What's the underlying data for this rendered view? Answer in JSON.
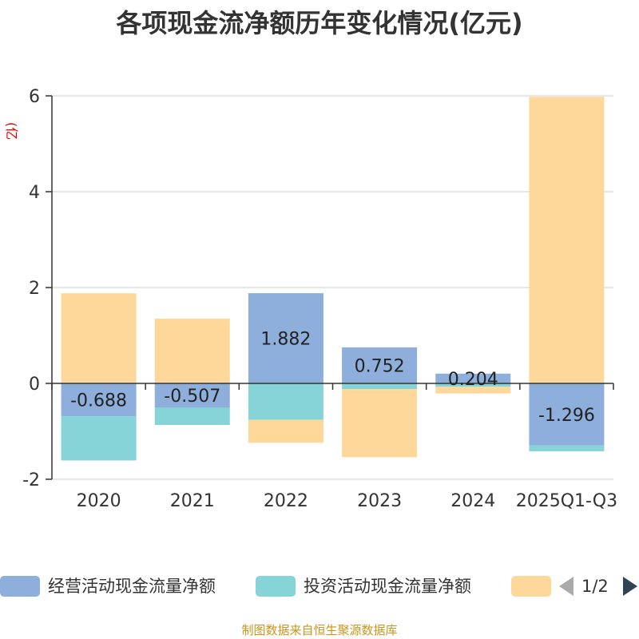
{
  "chart_data": {
    "type": "bar",
    "stacked": true,
    "title": "各项现金流净额历年变化情况(亿元)",
    "y_unit": "(亿元)",
    "categories": [
      "2020",
      "2021",
      "2022",
      "2023",
      "2024",
      "2025Q1-Q3"
    ],
    "ylim": [
      -2,
      6
    ],
    "yticks": [
      -2,
      0,
      2,
      4,
      6
    ],
    "grid": true,
    "legend_position": "bottom",
    "series": [
      {
        "name": "经营活动现金流量净额",
        "color": "#8eaedb",
        "values": [
          -0.688,
          -0.507,
          1.882,
          0.752,
          0.204,
          -1.296
        ],
        "labels": [
          "-0.688",
          "-0.507",
          "1.882",
          "0.752",
          "0.204",
          "-1.296"
        ]
      },
      {
        "name": "投资活动现金流量净额",
        "color": "#86d4d8",
        "values": [
          -0.92,
          -0.36,
          -0.76,
          -0.12,
          -0.07,
          -0.12
        ]
      },
      {
        "color": "#fdd89a",
        "values": [
          1.88,
          1.35,
          -0.48,
          -1.42,
          -0.14,
          5.98
        ]
      }
    ]
  },
  "legend": {
    "items": [
      {
        "label": "经营活动现金流量净额",
        "color": "#8eaedb"
      },
      {
        "label": "投资活动现金流量净额",
        "color": "#86d4d8"
      },
      {
        "label": "",
        "color": "#fdd89a"
      }
    ],
    "page_indicator": "1/2"
  },
  "source": "制图数据来自恒生聚源数据库"
}
